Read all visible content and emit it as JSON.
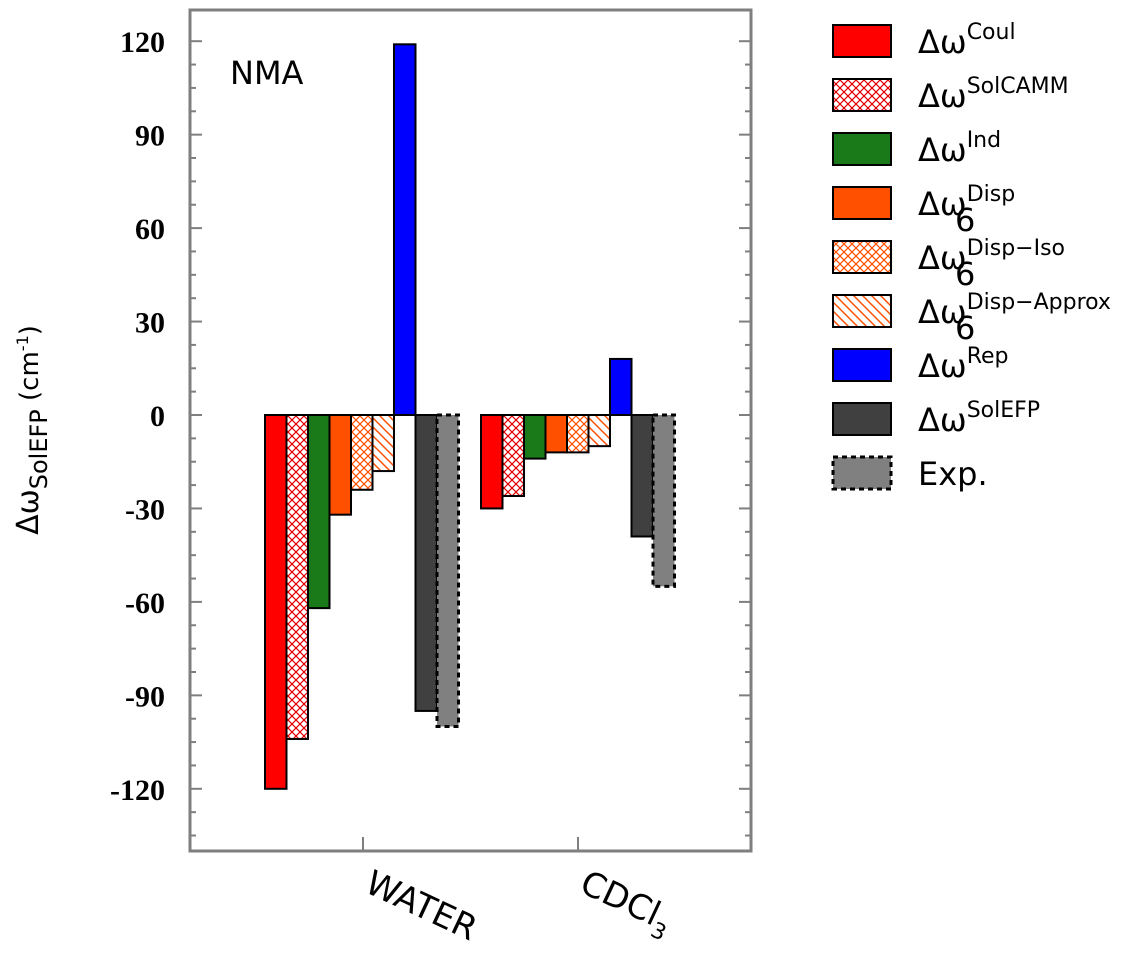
{
  "chart_data": {
    "type": "bar",
    "annotation": "NMA",
    "ylabel": {
      "main": "Δω",
      "sub": "SolEFP",
      "unit_open": " (cm",
      "unit_sup": "-1",
      "unit_close": ")"
    },
    "ylim": [
      -140,
      130
    ],
    "yticks": [
      -120,
      -90,
      -60,
      -30,
      0,
      30,
      60,
      90,
      120
    ],
    "categories": [
      {
        "main": "WATER",
        "sub": ""
      },
      {
        "main": "CDCl",
        "sub": "3"
      }
    ],
    "series": [
      {
        "name": "Coul",
        "base": "Δω",
        "sup": "Coul",
        "sub": "",
        "color": "#ff0000",
        "pattern": "solid",
        "values": [
          -120,
          -30
        ]
      },
      {
        "name": "SolCAMM",
        "base": "Δω",
        "sup": "SolCAMM",
        "sub": "",
        "color": "#e00000",
        "pattern": "crosshatch",
        "values": [
          -104,
          -26
        ]
      },
      {
        "name": "Ind",
        "base": "Δω",
        "sup": "Ind",
        "sub": "",
        "color": "#1a7a1a",
        "pattern": "solid",
        "values": [
          -62,
          -14
        ]
      },
      {
        "name": "Disp",
        "base": "Δω",
        "sup": "Disp",
        "sub": "6",
        "color": "#ff5000",
        "pattern": "solid",
        "values": [
          -32,
          -12
        ]
      },
      {
        "name": "Disp-Iso",
        "base": "Δω",
        "sup": "Disp−Iso",
        "sub": "6",
        "color": "#ff5000",
        "pattern": "crosshatch",
        "values": [
          -24,
          -12
        ]
      },
      {
        "name": "Disp-Approx",
        "base": "Δω",
        "sup": "Disp−Approx",
        "sub": "6",
        "color": "#ff5000",
        "pattern": "diagonal",
        "values": [
          -18,
          -10
        ]
      },
      {
        "name": "Rep",
        "base": "Δω",
        "sup": "Rep",
        "sub": "",
        "color": "#0000ff",
        "pattern": "solid",
        "values": [
          119,
          18
        ]
      },
      {
        "name": "SolEFP",
        "base": "Δω",
        "sup": "SolEFP",
        "sub": "",
        "color": "#404040",
        "pattern": "solid",
        "values": [
          -95,
          -39
        ]
      },
      {
        "name": "Exp.",
        "base": "Exp.",
        "sup": "",
        "sub": "",
        "color": "#808080",
        "pattern": "dashed",
        "values": [
          -100,
          -55
        ]
      }
    ]
  }
}
